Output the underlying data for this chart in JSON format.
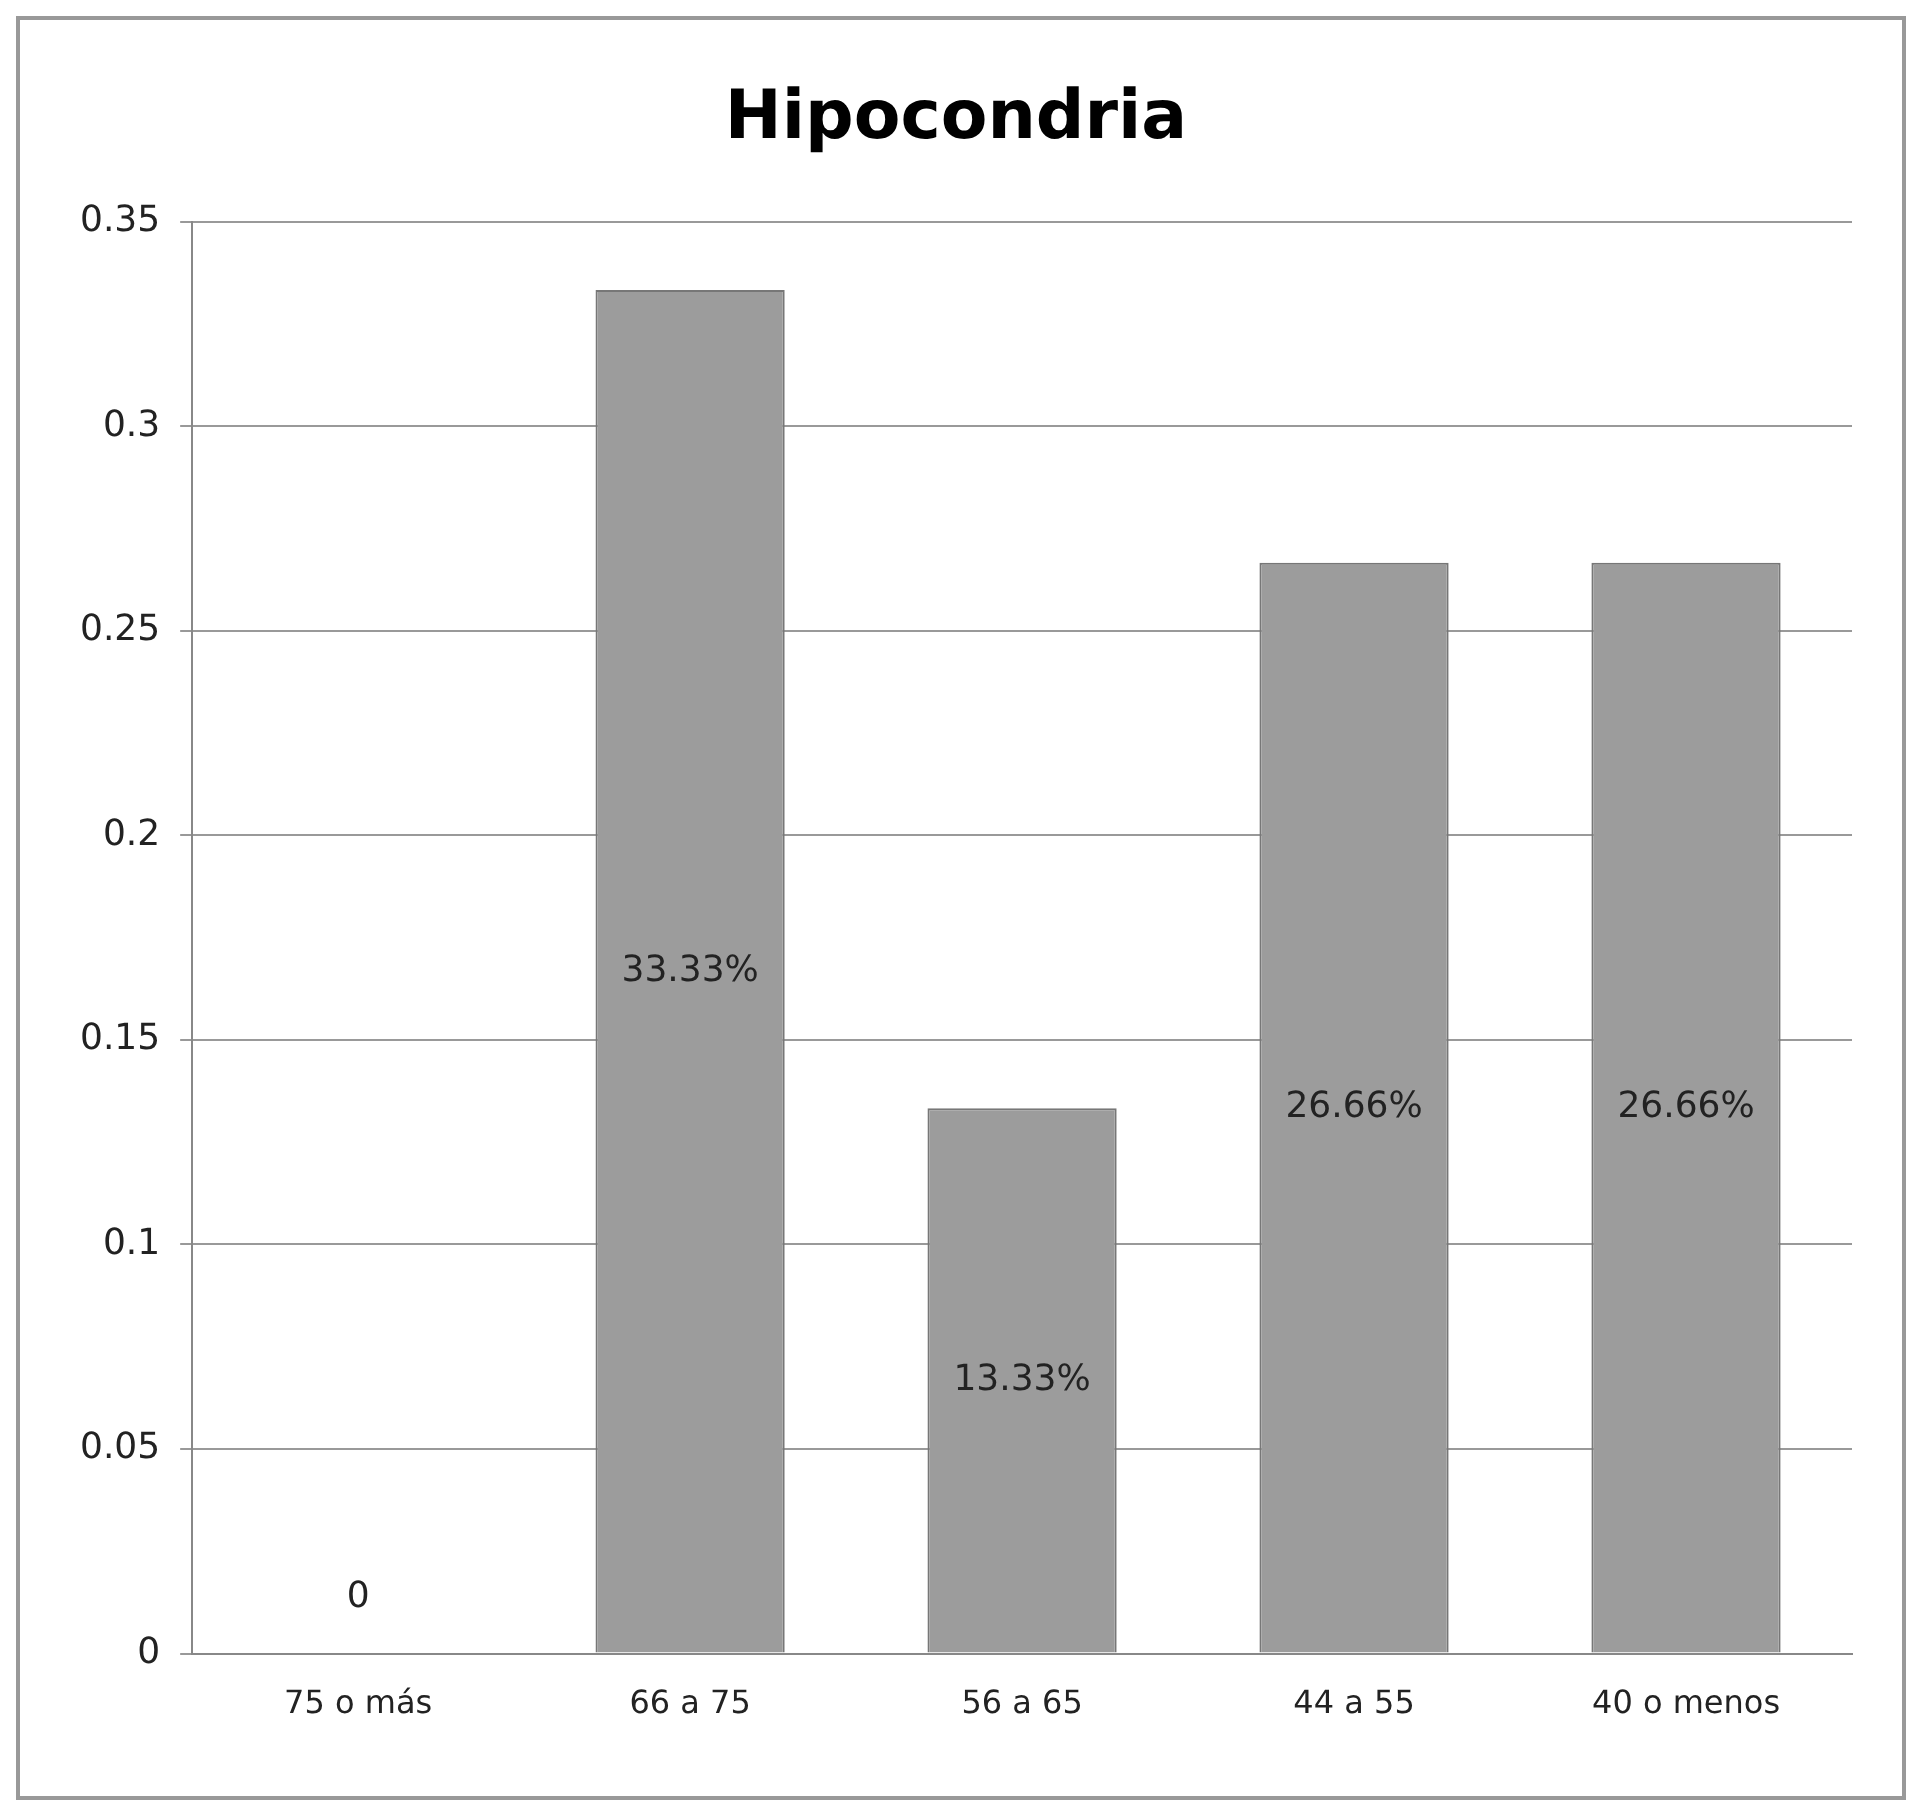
{
  "chart_data": {
    "type": "bar",
    "title": "Hipocondria",
    "categories": [
      "75 o más",
      "66 a 75",
      "56 a 65",
      "44 a 55",
      "40 o menos"
    ],
    "values": [
      0,
      0.3333,
      0.1333,
      0.2666,
      0.2666
    ],
    "value_labels": [
      "0",
      "33.33%",
      "13.33%",
      "26.66%",
      "26.66%"
    ],
    "color": "#9c9c9c",
    "ylim": [
      0,
      0.35
    ],
    "yticks": [
      0,
      0.05,
      0.1,
      0.15,
      0.2,
      0.25,
      0.3,
      0.35
    ],
    "grid": "y",
    "legend": false
  }
}
